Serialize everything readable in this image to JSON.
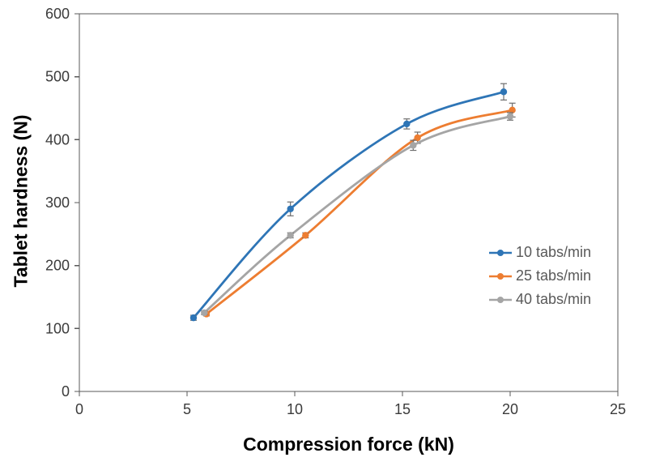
{
  "chart_data": {
    "type": "line",
    "title": "",
    "xlabel": "Compression force (kN)",
    "ylabel": "Tablet hardness (N)",
    "xlim": [
      0,
      25
    ],
    "ylim": [
      0,
      600
    ],
    "xticks": [
      0,
      5,
      10,
      15,
      20,
      25
    ],
    "yticks": [
      0,
      100,
      200,
      300,
      400,
      500,
      600
    ],
    "grid": false,
    "plot_border": true,
    "legend_position": "inside-right",
    "line_style": "smooth",
    "series": [
      {
        "name": "10 tabs/min",
        "color": "#2E75B6",
        "marker": "circle",
        "x": [
          5.3,
          9.8,
          15.2,
          19.7
        ],
        "y": [
          117,
          290,
          425,
          476
        ],
        "yerr": [
          4,
          11,
          8,
          13
        ]
      },
      {
        "name": "25 tabs/min",
        "color": "#ED7D31",
        "marker": "circle",
        "x": [
          5.9,
          10.5,
          15.7,
          20.1
        ],
        "y": [
          123,
          248,
          403,
          447
        ],
        "yerr": [
          3,
          4,
          9,
          11
        ]
      },
      {
        "name": "40 tabs/min",
        "color": "#A5A5A5",
        "marker": "circle",
        "x": [
          5.8,
          9.8,
          15.5,
          20.0
        ],
        "y": [
          125,
          248,
          391,
          437
        ],
        "yerr": [
          3,
          4,
          8,
          6
        ]
      }
    ],
    "colors": {
      "error_bar": "#6e6e6e",
      "axis": "#595959",
      "tick_label": "#3b3b3b",
      "axis_title": "#000000",
      "legend_text": "#595959",
      "background": "#ffffff"
    }
  }
}
